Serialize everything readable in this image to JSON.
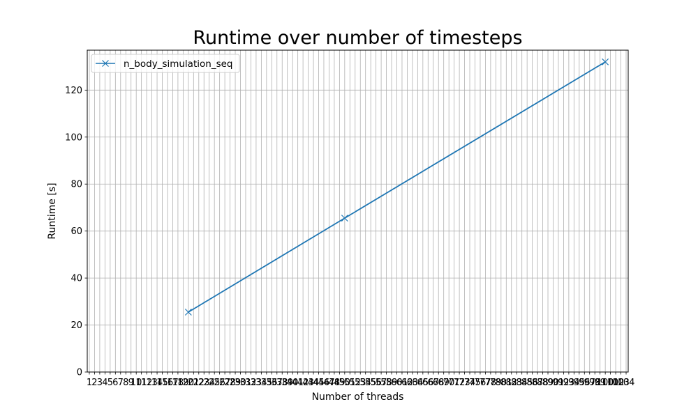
{
  "chart_data": {
    "type": "line",
    "title": "Runtime over number of timesteps",
    "xlabel": "Number of threads",
    "ylabel": "Runtime [s]",
    "xlim": [
      0.6,
      104.4
    ],
    "ylim": [
      0,
      137
    ],
    "x_ticks": [
      1,
      2,
      3,
      4,
      5,
      6,
      7,
      8,
      9,
      10,
      11,
      12,
      13,
      14,
      15,
      16,
      17,
      18,
      19,
      20,
      21,
      22,
      23,
      24,
      25,
      26,
      27,
      28,
      29,
      30,
      31,
      32,
      33,
      34,
      35,
      36,
      37,
      38,
      39,
      40,
      41,
      42,
      43,
      44,
      45,
      46,
      47,
      48,
      49,
      50,
      51,
      52,
      53,
      54,
      55,
      56,
      57,
      58,
      59,
      60,
      61,
      62,
      63,
      64,
      65,
      66,
      67,
      68,
      69,
      70,
      71,
      72,
      73,
      74,
      75,
      76,
      77,
      78,
      79,
      80,
      81,
      82,
      83,
      84,
      85,
      86,
      87,
      88,
      89,
      90,
      91,
      92,
      93,
      94,
      95,
      96,
      97,
      98,
      99,
      100,
      101,
      102,
      103,
      104
    ],
    "y_ticks": [
      0,
      20,
      40,
      60,
      80,
      100,
      120
    ],
    "grid": true,
    "legend_position": "upper-left",
    "series": [
      {
        "name": "n_body_simulation_seq",
        "color": "#1f77b4",
        "marker": "x",
        "x": [
          20,
          50,
          100
        ],
        "y": [
          25.5,
          65.5,
          132
        ]
      }
    ]
  }
}
